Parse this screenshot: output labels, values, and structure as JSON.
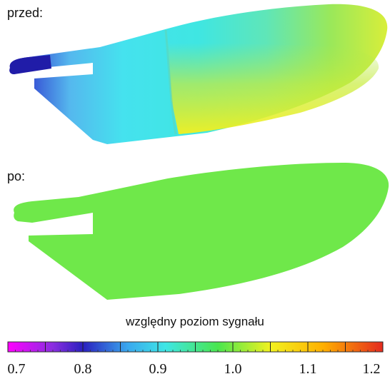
{
  "labels": {
    "before": "przed:",
    "after": "po:"
  },
  "colorbar": {
    "title": "względny poziom sygnału",
    "min": 0.7,
    "max": 1.2,
    "major_step": 0.05,
    "tick_labels": [
      "0.7",
      "0.8",
      "0.9",
      "1.0",
      "1.1",
      "1.2"
    ],
    "tick_values": [
      0.7,
      0.8,
      0.9,
      1.0,
      1.1,
      1.2
    ],
    "colors": [
      "#ff00ff",
      "#2a1fbf",
      "#33c6f0",
      "#3ee6e6",
      "#49e64e",
      "#f2f21f",
      "#ffb000",
      "#e42a1f"
    ]
  },
  "shapes": {
    "before_colors": {
      "tail_dark": "#1f1fa8",
      "mid_cyan": "#40e0ee",
      "body_green": "#7ae65a",
      "body_yellow": "#f2f21f"
    },
    "after_color": "#6fe84a"
  }
}
